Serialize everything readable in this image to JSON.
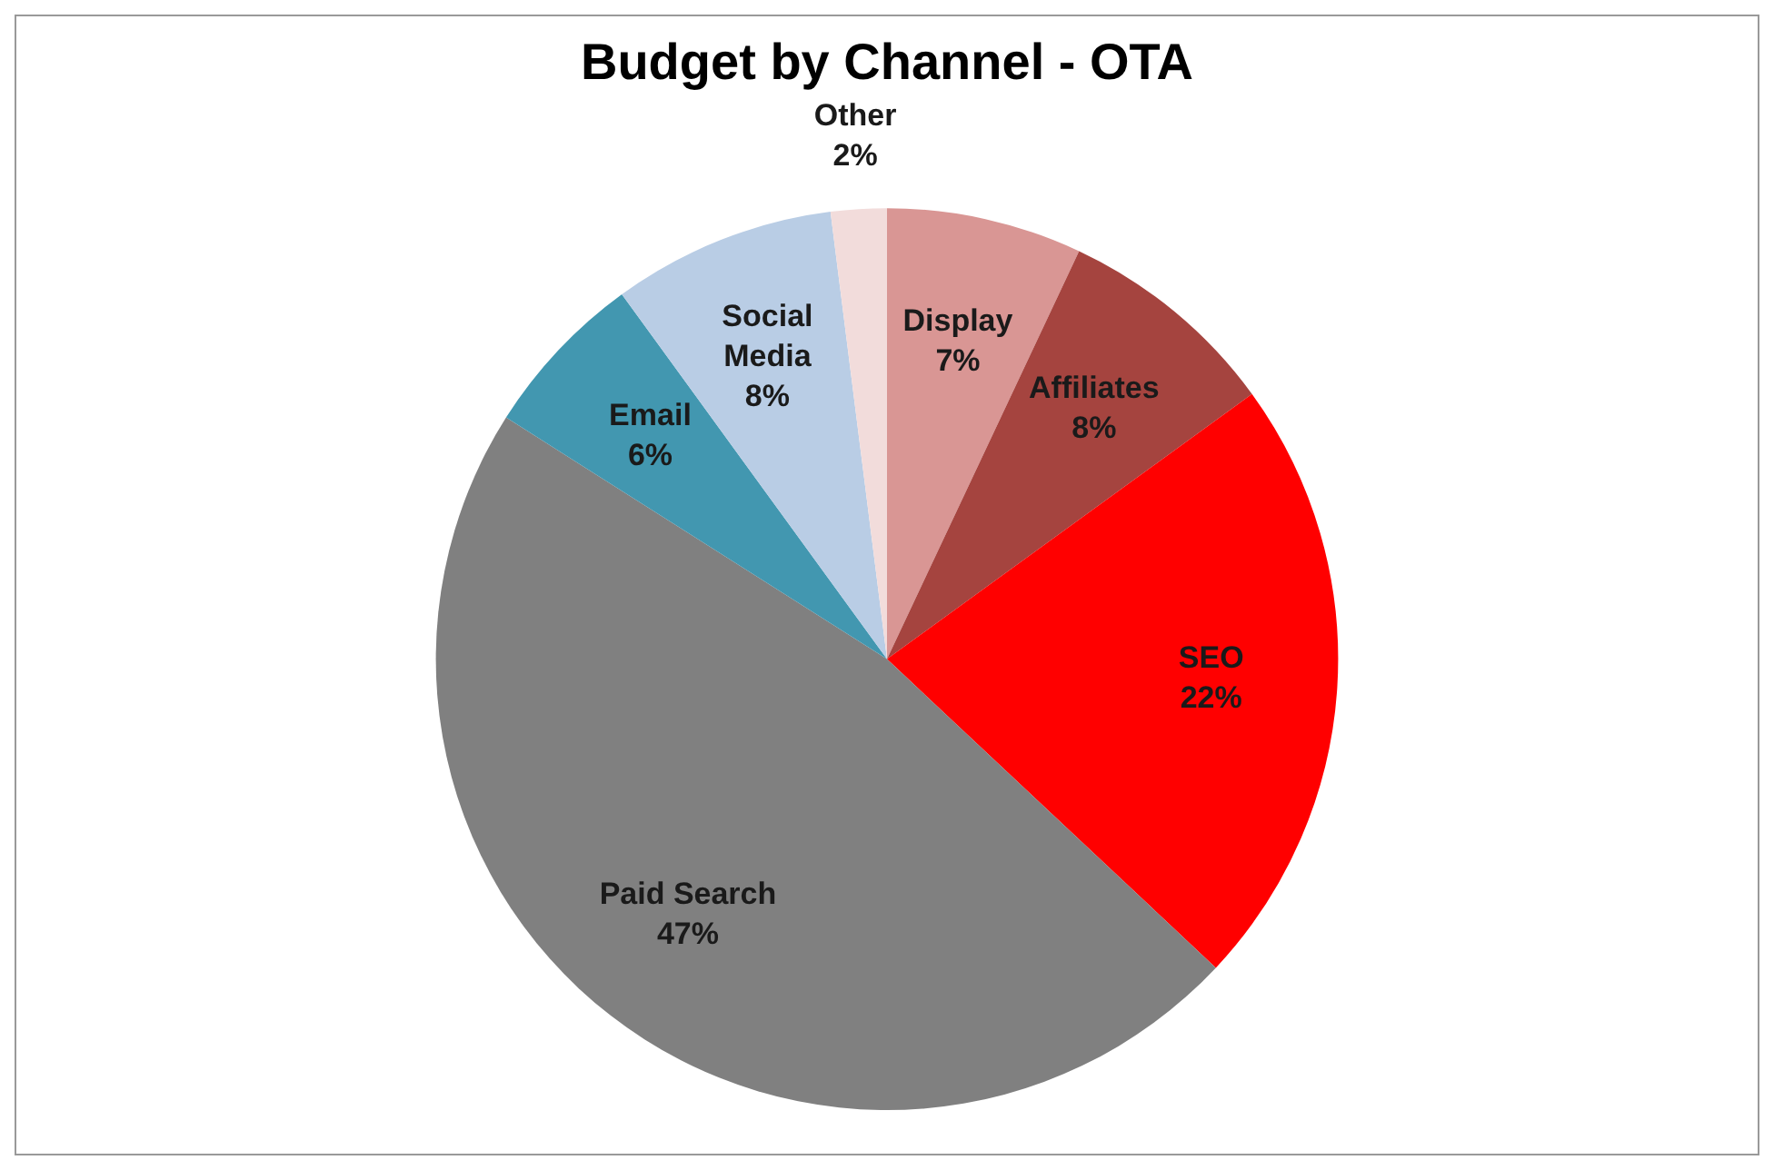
{
  "chart_data": {
    "type": "pie",
    "title": "Budget by Channel - OTA",
    "categories": [
      "Display",
      "Affiliates",
      "SEO",
      "Paid Search",
      "Email",
      "Social Media",
      "Other"
    ],
    "values": [
      7,
      8,
      22,
      47,
      6,
      8,
      2
    ],
    "value_labels": [
      "7%",
      "8%",
      "22%",
      "47%",
      "6%",
      "8%",
      "2%"
    ],
    "colors": [
      "#d99694",
      "#a5443f",
      "#ff0000",
      "#808080",
      "#4297b0",
      "#b9cde5",
      "#f2dcdb"
    ],
    "legend": false
  }
}
